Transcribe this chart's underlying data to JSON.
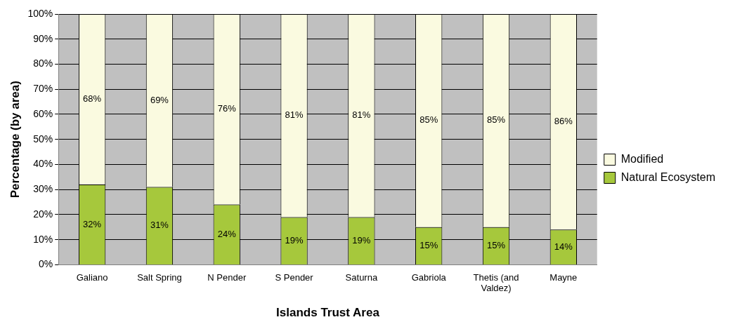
{
  "chart_data": {
    "type": "bar",
    "stacked": true,
    "xlabel": "Islands Trust Area",
    "ylabel": "Percentage (by area)",
    "categories": [
      "Galiano",
      "Salt Spring",
      "N Pender",
      "S Pender",
      "Saturna",
      "Gabriola",
      "Thetis (and Valdez)",
      "Mayne"
    ],
    "series": [
      {
        "name": "Natural Ecosystem",
        "color": "#a6c83c",
        "values": [
          32,
          31,
          24,
          19,
          19,
          15,
          15,
          14
        ],
        "value_labels": [
          "32%",
          "31%",
          "24%",
          "19%",
          "19%",
          "15%",
          "15%",
          "14%"
        ]
      },
      {
        "name": "Modified",
        "color": "#fafae0",
        "values": [
          68,
          69,
          76,
          81,
          81,
          85,
          85,
          86
        ],
        "value_labels": [
          "68%",
          "69%",
          "76%",
          "81%",
          "81%",
          "85%",
          "85%",
          "86%"
        ]
      }
    ],
    "ylim": [
      0,
      100
    ],
    "yticks": [
      {
        "value": 0,
        "label": "0%"
      },
      {
        "value": 10,
        "label": "10%"
      },
      {
        "value": 20,
        "label": "20%"
      },
      {
        "value": 30,
        "label": "30%"
      },
      {
        "value": 40,
        "label": "40%"
      },
      {
        "value": 50,
        "label": "50%"
      },
      {
        "value": 60,
        "label": "60%"
      },
      {
        "value": 70,
        "label": "70%"
      },
      {
        "value": 80,
        "label": "80%"
      },
      {
        "value": 90,
        "label": "90%"
      },
      {
        "value": 100,
        "label": "100%"
      }
    ],
    "grid": "y",
    "legend": "right"
  }
}
